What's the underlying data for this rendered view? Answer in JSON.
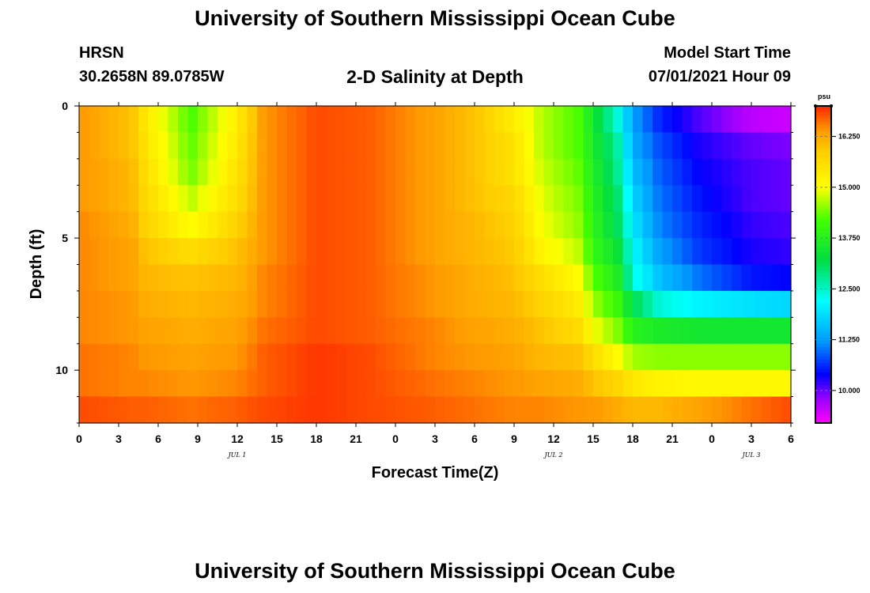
{
  "header": {
    "title": "University of Southern Mississippi Ocean Cube",
    "station": "HRSN",
    "coords": "30.2658N  89.0785W",
    "subtitle": "2-D Salinity at Depth",
    "start_label": "Model Start Time",
    "start_value": "07/01/2021 Hour 09"
  },
  "footer": {
    "title": "University of Southern Mississippi Ocean Cube"
  },
  "chart_data": {
    "type": "heatmap",
    "title": "2-D Salinity at Depth",
    "xlabel": "Forecast Time(Z)",
    "ylabel": "Depth (ft)",
    "x_ticks": [
      "0",
      "3",
      "6",
      "9",
      "12",
      "15",
      "18",
      "21",
      "0",
      "3",
      "6",
      "9",
      "12",
      "15",
      "18",
      "21",
      "0",
      "3",
      "6"
    ],
    "x_range_hours": [
      0,
      54
    ],
    "day_labels": [
      {
        "text": "JUL 1",
        "hour": 12
      },
      {
        "text": "JUL 2",
        "hour": 36
      },
      {
        "text": "JUL 3",
        "hour": 51
      }
    ],
    "y_ticks": [
      "0",
      "5",
      "10"
    ],
    "y_tick_values": [
      0,
      5,
      10
    ],
    "y_range_ft": [
      0,
      12
    ],
    "depth_levels_ft": [
      0.5,
      1.5,
      2.5,
      3.5,
      4.5,
      5.5,
      6.5,
      7.5,
      8.5,
      9.5,
      10.5,
      11.5
    ],
    "time_keys_hours": [
      0,
      4,
      5,
      8.5,
      12,
      14,
      18,
      22,
      27,
      30,
      33,
      35,
      38,
      39,
      41,
      42,
      44,
      47,
      51,
      54
    ],
    "values_psu": [
      [
        16.4,
        16.0,
        15.4,
        14.2,
        15.3,
        16.4,
        16.8,
        16.7,
        16.3,
        16.0,
        15.3,
        14.7,
        14.2,
        13.5,
        12.3,
        11.3,
        10.6,
        10.1,
        9.6,
        9.5
      ],
      [
        16.4,
        16.0,
        15.5,
        14.3,
        15.4,
        16.4,
        16.8,
        16.7,
        16.3,
        16.0,
        15.5,
        14.7,
        14.2,
        13.6,
        12.6,
        11.4,
        10.8,
        10.3,
        10.0,
        9.9
      ],
      [
        16.4,
        16.1,
        15.6,
        14.4,
        15.5,
        16.4,
        16.8,
        16.7,
        16.3,
        16.0,
        15.5,
        14.8,
        14.3,
        13.7,
        12.7,
        11.6,
        10.9,
        10.4,
        10.1,
        10.0
      ],
      [
        16.4,
        16.1,
        15.7,
        14.7,
        15.6,
        16.4,
        16.8,
        16.7,
        16.3,
        16.0,
        15.7,
        14.9,
        14.4,
        13.8,
        12.9,
        11.8,
        11.0,
        10.5,
        10.1,
        10.0
      ],
      [
        16.5,
        16.2,
        15.8,
        15.0,
        15.8,
        16.4,
        16.8,
        16.7,
        16.3,
        16.1,
        15.8,
        15.0,
        14.5,
        13.9,
        13.0,
        12.0,
        11.1,
        10.6,
        10.2,
        10.1
      ],
      [
        16.5,
        16.3,
        16.0,
        15.6,
        16.0,
        16.4,
        16.8,
        16.7,
        16.3,
        16.1,
        15.9,
        15.2,
        14.7,
        14.0,
        13.3,
        12.2,
        11.3,
        10.7,
        10.3,
        10.2
      ],
      [
        16.5,
        16.3,
        16.1,
        16.0,
        16.1,
        16.5,
        16.8,
        16.7,
        16.4,
        16.2,
        16.0,
        15.6,
        15.0,
        14.3,
        13.6,
        12.4,
        11.6,
        11.0,
        10.5,
        10.4
      ],
      [
        16.5,
        16.4,
        16.2,
        16.1,
        16.2,
        16.5,
        16.8,
        16.7,
        16.4,
        16.2,
        16.1,
        15.8,
        15.3,
        14.6,
        14.0,
        13.2,
        12.4,
        12.1,
        11.9,
        11.8
      ],
      [
        16.5,
        16.4,
        16.3,
        16.2,
        16.3,
        16.6,
        16.8,
        16.7,
        16.5,
        16.3,
        16.2,
        16.0,
        15.6,
        15.0,
        14.4,
        13.8,
        13.6,
        13.5,
        13.5,
        13.5
      ],
      [
        16.6,
        16.5,
        16.4,
        16.3,
        16.4,
        16.7,
        16.9,
        16.8,
        16.5,
        16.4,
        16.3,
        16.1,
        16.0,
        15.6,
        15.0,
        14.6,
        14.5,
        14.5,
        14.5,
        14.5
      ],
      [
        16.6,
        16.5,
        16.5,
        16.4,
        16.5,
        16.7,
        16.9,
        16.8,
        16.6,
        16.5,
        16.4,
        16.3,
        16.2,
        16.0,
        15.7,
        15.4,
        15.2,
        15.1,
        15.1,
        15.1
      ],
      [
        16.8,
        16.7,
        16.7,
        16.6,
        16.7,
        16.8,
        16.9,
        16.8,
        16.7,
        16.6,
        16.5,
        16.5,
        16.4,
        16.4,
        16.2,
        16.1,
        16.1,
        16.3,
        16.6,
        16.8
      ]
    ],
    "colorbar": {
      "unit": "psu",
      "tick_labels": [
        "16.250",
        "15.000",
        "13.750",
        "12.500",
        "11.250",
        "10.000"
      ],
      "tick_values": [
        16.25,
        15.0,
        13.75,
        12.5,
        11.25,
        10.0
      ],
      "range": [
        9.2,
        17.0
      ],
      "stops": [
        {
          "v": 9.2,
          "color": "#ff00ff"
        },
        {
          "v": 9.8,
          "color": "#9900ff"
        },
        {
          "v": 10.4,
          "color": "#0000ff"
        },
        {
          "v": 11.2,
          "color": "#0099ff"
        },
        {
          "v": 12.2,
          "color": "#00ffff"
        },
        {
          "v": 13.2,
          "color": "#00dd44"
        },
        {
          "v": 14.2,
          "color": "#44ff00"
        },
        {
          "v": 15.0,
          "color": "#ffff00"
        },
        {
          "v": 15.9,
          "color": "#ffcc00"
        },
        {
          "v": 16.4,
          "color": "#ff9900"
        },
        {
          "v": 17.0,
          "color": "#ff2200"
        }
      ]
    }
  }
}
